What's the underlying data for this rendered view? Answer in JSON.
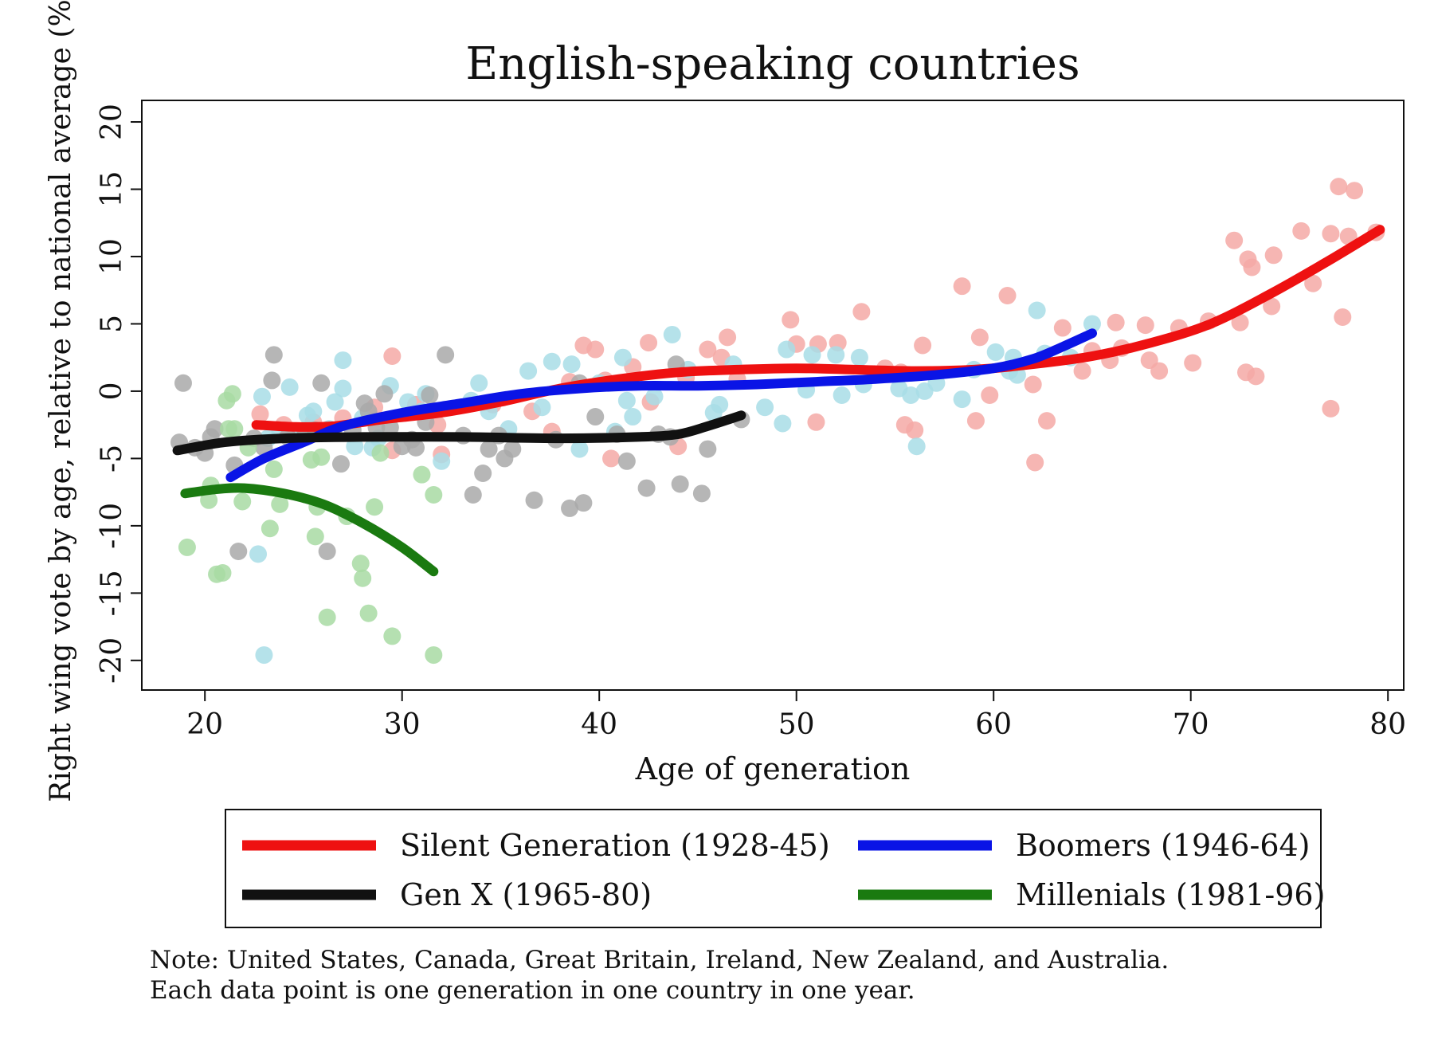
{
  "chart_data": {
    "type": "scatter",
    "title": "English-speaking countries",
    "xlabel": "Age of generation",
    "ylabel": "Right wing vote by age, relative to national average (%)",
    "xlim": [
      16.8,
      80.8
    ],
    "ylim": [
      -22.2,
      21.6
    ],
    "xticks": [
      20,
      30,
      40,
      50,
      60,
      70,
      80
    ],
    "yticks": [
      -20,
      -15,
      -10,
      -5,
      0,
      5,
      10,
      15,
      20
    ],
    "grid": false,
    "legend_position": "bottom",
    "series": [
      {
        "name": "Silent Generation (1928-45)",
        "color": "#ee1111",
        "point_color": "#f4a9a6",
        "points": [
          [
            22.8,
            -1.7
          ],
          [
            24,
            -2.5
          ],
          [
            25.5,
            -2.3
          ],
          [
            27,
            -2
          ],
          [
            28.6,
            -1.2
          ],
          [
            29.5,
            2.6
          ],
          [
            29.5,
            -4.4
          ],
          [
            30.7,
            -1
          ],
          [
            31.8,
            -2.5
          ],
          [
            32,
            -4.7
          ],
          [
            34.6,
            -1
          ],
          [
            36.6,
            -1.5
          ],
          [
            37.6,
            -3
          ],
          [
            38.5,
            0.7
          ],
          [
            39.2,
            3.4
          ],
          [
            39.8,
            3.1
          ],
          [
            40.3,
            0.8
          ],
          [
            40.6,
            -5
          ],
          [
            41.7,
            1.8
          ],
          [
            42.5,
            3.6
          ],
          [
            42.6,
            -0.8
          ],
          [
            44,
            -4.1
          ],
          [
            44.4,
            1
          ],
          [
            45.5,
            3.1
          ],
          [
            46.2,
            2.5
          ],
          [
            46.5,
            4
          ],
          [
            47,
            0.9
          ],
          [
            49.7,
            5.3
          ],
          [
            50,
            3.5
          ],
          [
            51,
            -2.3
          ],
          [
            51.1,
            3.5
          ],
          [
            52.1,
            3.6
          ],
          [
            53.3,
            5.9
          ],
          [
            54.5,
            1.7
          ],
          [
            55.3,
            1.4
          ],
          [
            55.5,
            -2.5
          ],
          [
            56,
            -2.9
          ],
          [
            56.4,
            3.4
          ],
          [
            58.4,
            7.8
          ],
          [
            59.1,
            -2.2
          ],
          [
            59.3,
            4
          ],
          [
            59.8,
            -0.3
          ],
          [
            60.7,
            7.1
          ],
          [
            62,
            0.5
          ],
          [
            62.1,
            -5.3
          ],
          [
            62.7,
            -2.2
          ],
          [
            63.5,
            4.7
          ],
          [
            64.5,
            1.5
          ],
          [
            65,
            3
          ],
          [
            65.9,
            2.3
          ],
          [
            66.2,
            5.1
          ],
          [
            66.5,
            3.2
          ],
          [
            67.7,
            4.9
          ],
          [
            67.9,
            2.3
          ],
          [
            68.4,
            1.5
          ],
          [
            69.4,
            4.7
          ],
          [
            70.1,
            2.1
          ],
          [
            70.9,
            5.2
          ],
          [
            72.2,
            11.2
          ],
          [
            72.5,
            5.1
          ],
          [
            72.8,
            1.4
          ],
          [
            72.9,
            9.8
          ],
          [
            73.1,
            9.2
          ],
          [
            73.3,
            1.1
          ],
          [
            74.2,
            10.1
          ],
          [
            74.1,
            6.3
          ],
          [
            75.6,
            11.9
          ],
          [
            76.2,
            8
          ],
          [
            77.1,
            -1.3
          ],
          [
            77.1,
            11.7
          ],
          [
            77.5,
            15.2
          ],
          [
            77.7,
            5.5
          ],
          [
            78,
            11.5
          ],
          [
            78.3,
            14.9
          ],
          [
            79.4,
            11.8
          ]
        ],
        "curve": [
          [
            22.6,
            -2.5
          ],
          [
            24.5,
            -2.65
          ],
          [
            26.5,
            -2.6
          ],
          [
            29,
            -2.1
          ],
          [
            32,
            -1.6
          ],
          [
            35,
            -0.8
          ],
          [
            38,
            0.2
          ],
          [
            41,
            0.9
          ],
          [
            44,
            1.4
          ],
          [
            47,
            1.6
          ],
          [
            50,
            1.7
          ],
          [
            53,
            1.6
          ],
          [
            56,
            1.5
          ],
          [
            59,
            1.6
          ],
          [
            62,
            2.0
          ],
          [
            65,
            2.6
          ],
          [
            68,
            3.6
          ],
          [
            71,
            5.0
          ],
          [
            74,
            7.2
          ],
          [
            77,
            9.7
          ],
          [
            79.6,
            12.0
          ]
        ]
      },
      {
        "name": "Boomers (1946-64)",
        "color": "#0a14e6",
        "point_color": "#a8dde6",
        "points": [
          [
            22.9,
            -0.4
          ],
          [
            23.2,
            -3.5
          ],
          [
            23.8,
            -3
          ],
          [
            24.3,
            0.3
          ],
          [
            24.5,
            -3.6
          ],
          [
            25.2,
            -1.8
          ],
          [
            25.5,
            -1.5
          ],
          [
            26.3,
            -2.8
          ],
          [
            26.6,
            -0.8
          ],
          [
            27,
            2.3
          ],
          [
            27,
            0.2
          ],
          [
            27.6,
            -4.1
          ],
          [
            28,
            -2
          ],
          [
            28.5,
            -4.2
          ],
          [
            28.8,
            -3.5
          ],
          [
            29.4,
            0.4
          ],
          [
            30.3,
            -0.8
          ],
          [
            31,
            -1.5
          ],
          [
            31.2,
            -0.2
          ],
          [
            32,
            -5.2
          ],
          [
            33.5,
            -0.7
          ],
          [
            33.9,
            0.6
          ],
          [
            34.4,
            -1.5
          ],
          [
            35.4,
            -2.8
          ],
          [
            36.4,
            1.5
          ],
          [
            37.1,
            -1.2
          ],
          [
            37.6,
            2.2
          ],
          [
            38.6,
            2
          ],
          [
            39,
            -4.3
          ],
          [
            40,
            0.6
          ],
          [
            40.8,
            -3
          ],
          [
            41.2,
            2.5
          ],
          [
            41.4,
            -0.7
          ],
          [
            41.7,
            -1.9
          ],
          [
            42.8,
            -0.4
          ],
          [
            43.7,
            4.2
          ],
          [
            44.5,
            1.6
          ],
          [
            45.8,
            -1.6
          ],
          [
            46.1,
            -1
          ],
          [
            46.8,
            2
          ],
          [
            48.4,
            -1.2
          ],
          [
            49.3,
            -2.4
          ],
          [
            49.5,
            3.1
          ],
          [
            50.5,
            0.1
          ],
          [
            50.8,
            2.7
          ],
          [
            52,
            2.7
          ],
          [
            52.3,
            -0.3
          ],
          [
            53.2,
            2.5
          ],
          [
            53.4,
            0.5
          ],
          [
            54,
            1.2
          ],
          [
            55.2,
            0.2
          ],
          [
            55.8,
            -0.3
          ],
          [
            56.1,
            -4.1
          ],
          [
            56.5,
            0
          ],
          [
            57.1,
            0.6
          ],
          [
            58.4,
            -0.6
          ],
          [
            59,
            1.6
          ],
          [
            60.1,
            2.9
          ],
          [
            60.8,
            1.5
          ],
          [
            61,
            2.5
          ],
          [
            61.2,
            1.2
          ],
          [
            62.2,
            6
          ],
          [
            62.6,
            2.8
          ],
          [
            63.9,
            2.5
          ],
          [
            65,
            5
          ]
        ],
        "curve": [
          [
            21.3,
            -6.4
          ],
          [
            23,
            -5
          ],
          [
            25,
            -3.8
          ],
          [
            27,
            -2.6
          ],
          [
            30,
            -1.6
          ],
          [
            33,
            -0.9
          ],
          [
            36,
            -0.2
          ],
          [
            39,
            0.2
          ],
          [
            42,
            0.4
          ],
          [
            45,
            0.4
          ],
          [
            48,
            0.5
          ],
          [
            51,
            0.7
          ],
          [
            54,
            0.9
          ],
          [
            57,
            1.2
          ],
          [
            60,
            1.7
          ],
          [
            62,
            2.4
          ],
          [
            63.5,
            3.3
          ],
          [
            65,
            4.3
          ]
        ]
      },
      {
        "name": "Gen X (1965-80)",
        "color": "#111111",
        "point_color": "#a9a9a9",
        "points": [
          [
            18.7,
            -3.8
          ],
          [
            18.9,
            0.6
          ],
          [
            19.5,
            -4.2
          ],
          [
            20,
            -4.6
          ],
          [
            20.3,
            -3.4
          ],
          [
            20.5,
            -2.8
          ],
          [
            21.5,
            -5.5
          ],
          [
            21.7,
            -11.9
          ],
          [
            22.5,
            -3.5
          ],
          [
            23,
            -4.2
          ],
          [
            23.4,
            0.8
          ],
          [
            23.5,
            2.7
          ],
          [
            24.2,
            -3.4
          ],
          [
            25.1,
            -3
          ],
          [
            25.6,
            -2.9
          ],
          [
            25.9,
            0.6
          ],
          [
            26.2,
            -11.9
          ],
          [
            26.5,
            -3.1
          ],
          [
            26.9,
            -5.4
          ],
          [
            27.5,
            -2.9
          ],
          [
            28.1,
            -0.9
          ],
          [
            28.3,
            -1.5
          ],
          [
            28.7,
            -2.7
          ],
          [
            29.1,
            -0.2
          ],
          [
            29.4,
            -2.7
          ],
          [
            30,
            -4.1
          ],
          [
            30.5,
            -3.6
          ],
          [
            30.7,
            -4.2
          ],
          [
            31.2,
            -2.3
          ],
          [
            31.4,
            -0.3
          ],
          [
            32.2,
            2.7
          ],
          [
            33.1,
            -3.3
          ],
          [
            33.6,
            -7.7
          ],
          [
            34.1,
            -6.1
          ],
          [
            34.4,
            -4.3
          ],
          [
            34.9,
            -3.3
          ],
          [
            35.2,
            -5
          ],
          [
            35.6,
            -4.3
          ],
          [
            36.7,
            -8.1
          ],
          [
            37.8,
            -3.6
          ],
          [
            38.5,
            -8.7
          ],
          [
            39,
            0.6
          ],
          [
            39.2,
            -8.3
          ],
          [
            39.8,
            -1.9
          ],
          [
            40.9,
            -3.2
          ],
          [
            41.4,
            -5.2
          ],
          [
            42.4,
            -7.2
          ],
          [
            43,
            -3.2
          ],
          [
            43.6,
            -3.4
          ],
          [
            43.9,
            2
          ],
          [
            44.1,
            -6.9
          ],
          [
            45.2,
            -7.6
          ],
          [
            45.5,
            -4.3
          ],
          [
            47.2,
            -2.1
          ]
        ],
        "curve": [
          [
            18.6,
            -4.4
          ],
          [
            21,
            -3.8
          ],
          [
            24,
            -3.5
          ],
          [
            28,
            -3.4
          ],
          [
            33,
            -3.4
          ],
          [
            38,
            -3.5
          ],
          [
            42,
            -3.4
          ],
          [
            44,
            -3.2
          ],
          [
            45.5,
            -2.6
          ],
          [
            47.2,
            -1.8
          ]
        ]
      },
      {
        "name": "Millenials (1981-96)",
        "color": "#1a7a10",
        "point_color": "#a8dba3",
        "points": [
          [
            19.1,
            -11.6
          ],
          [
            20.2,
            -8.1
          ],
          [
            20.3,
            -7
          ],
          [
            20.6,
            -13.6
          ],
          [
            20.9,
            -13.5
          ],
          [
            21.1,
            -0.7
          ],
          [
            21.2,
            -2.8
          ],
          [
            21.4,
            -0.2
          ],
          [
            21.5,
            -2.8
          ],
          [
            21.9,
            -8.2
          ],
          [
            22.2,
            -4.2
          ],
          [
            23.3,
            -10.2
          ],
          [
            23.5,
            -5.8
          ],
          [
            23.8,
            -8.4
          ],
          [
            25.4,
            -5.1
          ],
          [
            25.6,
            -10.8
          ],
          [
            25.7,
            -8.6
          ],
          [
            25.9,
            -4.9
          ],
          [
            26.2,
            -16.8
          ],
          [
            27.2,
            -9.3
          ],
          [
            27.9,
            -12.8
          ],
          [
            28,
            -13.9
          ],
          [
            28.3,
            -16.5
          ],
          [
            28.6,
            -8.6
          ],
          [
            28.9,
            -4.6
          ],
          [
            29.5,
            -18.2
          ],
          [
            31,
            -6.2
          ],
          [
            31.6,
            -7.7
          ],
          [
            31.6,
            -19.6
          ]
        ],
        "curve": [
          [
            19,
            -7.6
          ],
          [
            20.5,
            -7.3
          ],
          [
            22,
            -7.2
          ],
          [
            24,
            -7.6
          ],
          [
            26,
            -8.4
          ],
          [
            28,
            -9.8
          ],
          [
            30,
            -11.6
          ],
          [
            31.6,
            -13.4
          ]
        ]
      }
    ],
    "extra_points": [
      {
        "x": 23,
        "y": -19.6,
        "color": "#a8dde6"
      },
      {
        "x": 22.7,
        "y": -12.1,
        "color": "#a8dde6"
      }
    ]
  },
  "note": {
    "line1": "Note: United States, Canada, Great Britain, Ireland, New Zealand, and Australia.",
    "line2": "Each data point is one generation in one country in one year."
  }
}
